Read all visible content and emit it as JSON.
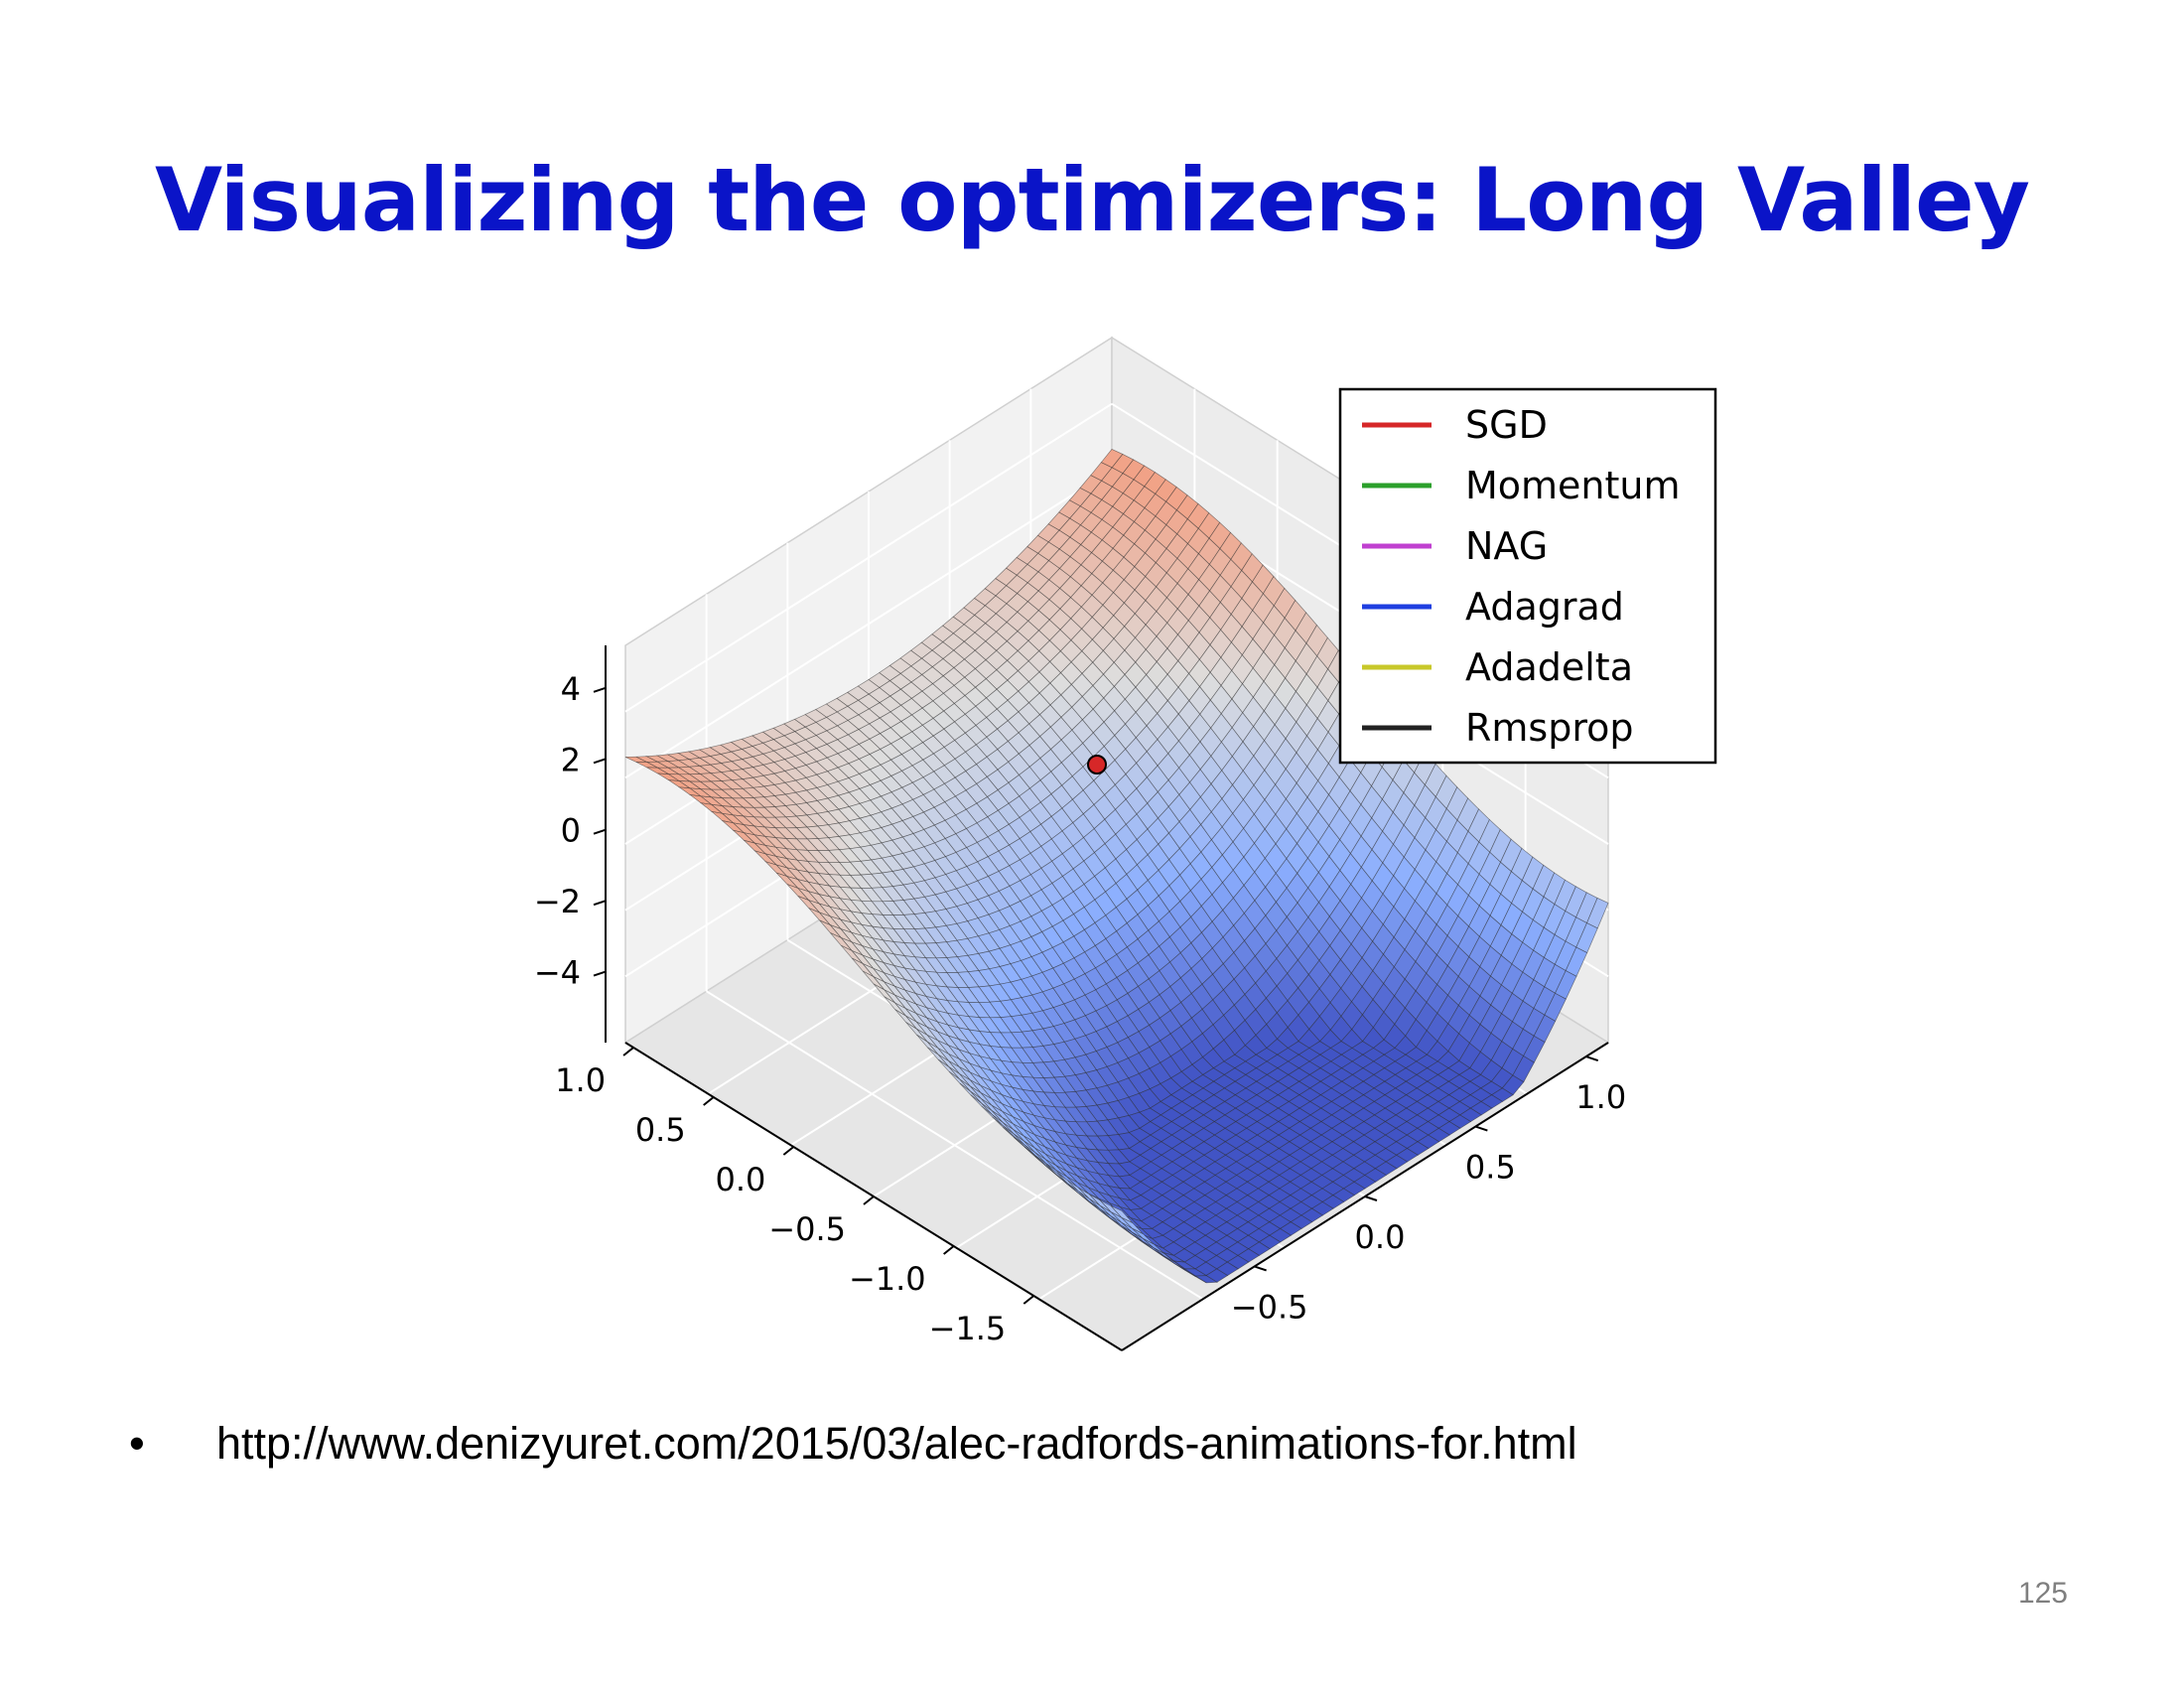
{
  "slide": {
    "title": "Visualizing the optimizers: Long Valley",
    "bullet": "•",
    "link": "http://www.denizyuret.com/2015/03/alec-radfords-animations-for.html",
    "page_number": "125"
  },
  "chart_data": {
    "type": "surface3d",
    "title": "",
    "surface": "long valley (cosine along one axis, quadratic across)",
    "colormap": [
      "#3b4cc0",
      "#8caffe",
      "#dddddd",
      "#f49a7b",
      "#b40426"
    ],
    "z_ticks": [
      "4",
      "2",
      "0",
      "−2",
      "−4"
    ],
    "x_ticks": [
      "1.0",
      "0.5",
      "0.0",
      "−0.5",
      "−1.0",
      "−1.5"
    ],
    "y_ticks": [
      "1.0",
      "0.5",
      "0.0",
      "−0.5"
    ],
    "zlim": [
      -4,
      4
    ],
    "start_point": {
      "color": "#d62728"
    },
    "legend": {
      "placement": "top-right",
      "entries": [
        {
          "label": "SGD",
          "color": "#d62728"
        },
        {
          "label": "Momentum",
          "color": "#2ca02c"
        },
        {
          "label": "NAG",
          "color": "#c040d0"
        },
        {
          "label": "Adagrad",
          "color": "#1f3fe0"
        },
        {
          "label": "Adadelta",
          "color": "#c8c82a"
        },
        {
          "label": "Rmsprop",
          "color": "#222222"
        }
      ]
    }
  }
}
